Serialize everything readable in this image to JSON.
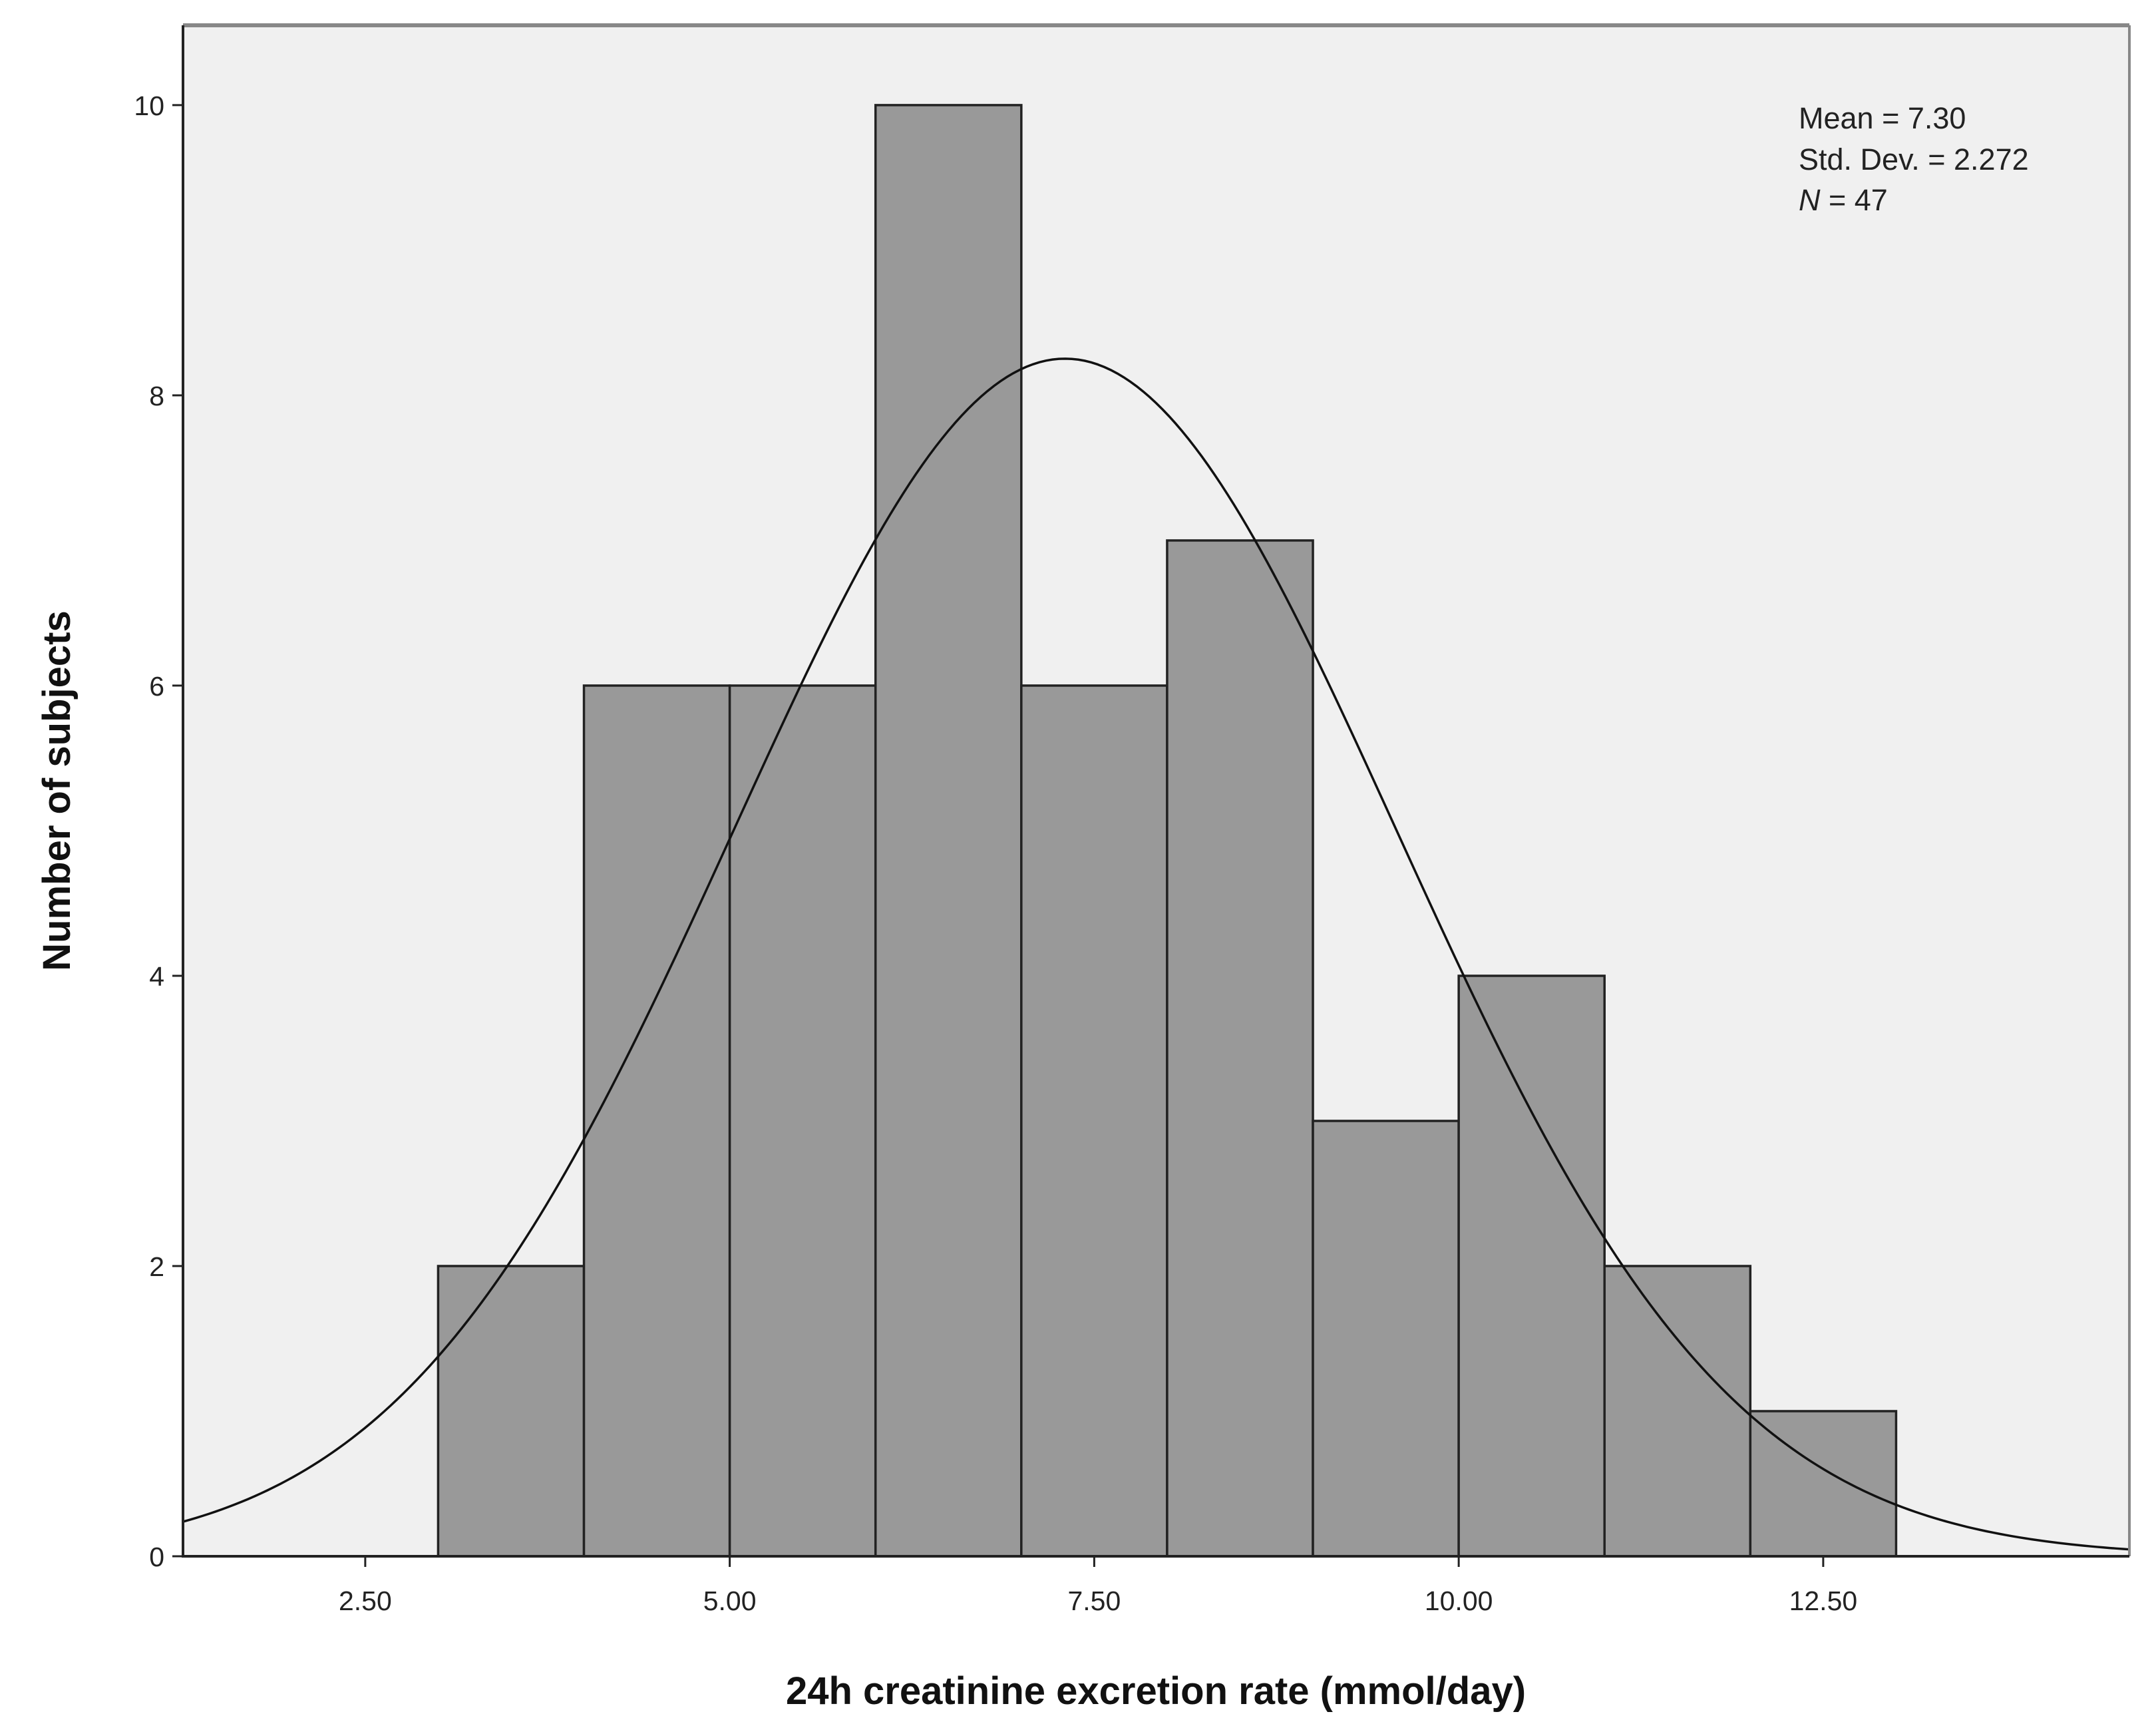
{
  "chart_data": {
    "type": "histogram",
    "xlabel": "24h creatinine excretion rate (mmol/day)",
    "ylabel": "Number of subjects",
    "xlim": [
      1.25,
      14.6
    ],
    "ylim": [
      0,
      10.55
    ],
    "x_ticks": [
      2.5,
      5.0,
      7.5,
      10.0,
      12.5
    ],
    "x_tick_labels": [
      "2.50",
      "5.00",
      "7.50",
      "10.00",
      "12.50"
    ],
    "y_ticks": [
      0,
      2,
      4,
      6,
      8,
      10
    ],
    "y_tick_labels": [
      "0",
      "2",
      "4",
      "6",
      "8",
      "10"
    ],
    "bins": [
      {
        "start": 3,
        "end": 4,
        "count": 2
      },
      {
        "start": 4,
        "end": 5,
        "count": 6
      },
      {
        "start": 5,
        "end": 6,
        "count": 6
      },
      {
        "start": 6,
        "end": 7,
        "count": 10
      },
      {
        "start": 7,
        "end": 8,
        "count": 6
      },
      {
        "start": 8,
        "end": 9,
        "count": 7
      },
      {
        "start": 9,
        "end": 10,
        "count": 3
      },
      {
        "start": 10,
        "end": 11,
        "count": 4
      },
      {
        "start": 11,
        "end": 12,
        "count": 2
      },
      {
        "start": 12,
        "end": 13,
        "count": 1
      }
    ],
    "normal_curve": {
      "mean": 7.3,
      "sd": 2.272,
      "n": 47,
      "bin_width": 1
    },
    "stats_box": {
      "mean_label": "Mean = 7.30",
      "sd_label": "Std. Dev. = 2.272",
      "n_symbol": "N",
      "n_value": " = 47"
    },
    "colors": {
      "plot_bg": "#f0f0f0",
      "bar_fill": "#999999",
      "bar_stroke": "#222222",
      "curve": "#111111",
      "frame": "#888888",
      "axis": "#222222"
    }
  }
}
